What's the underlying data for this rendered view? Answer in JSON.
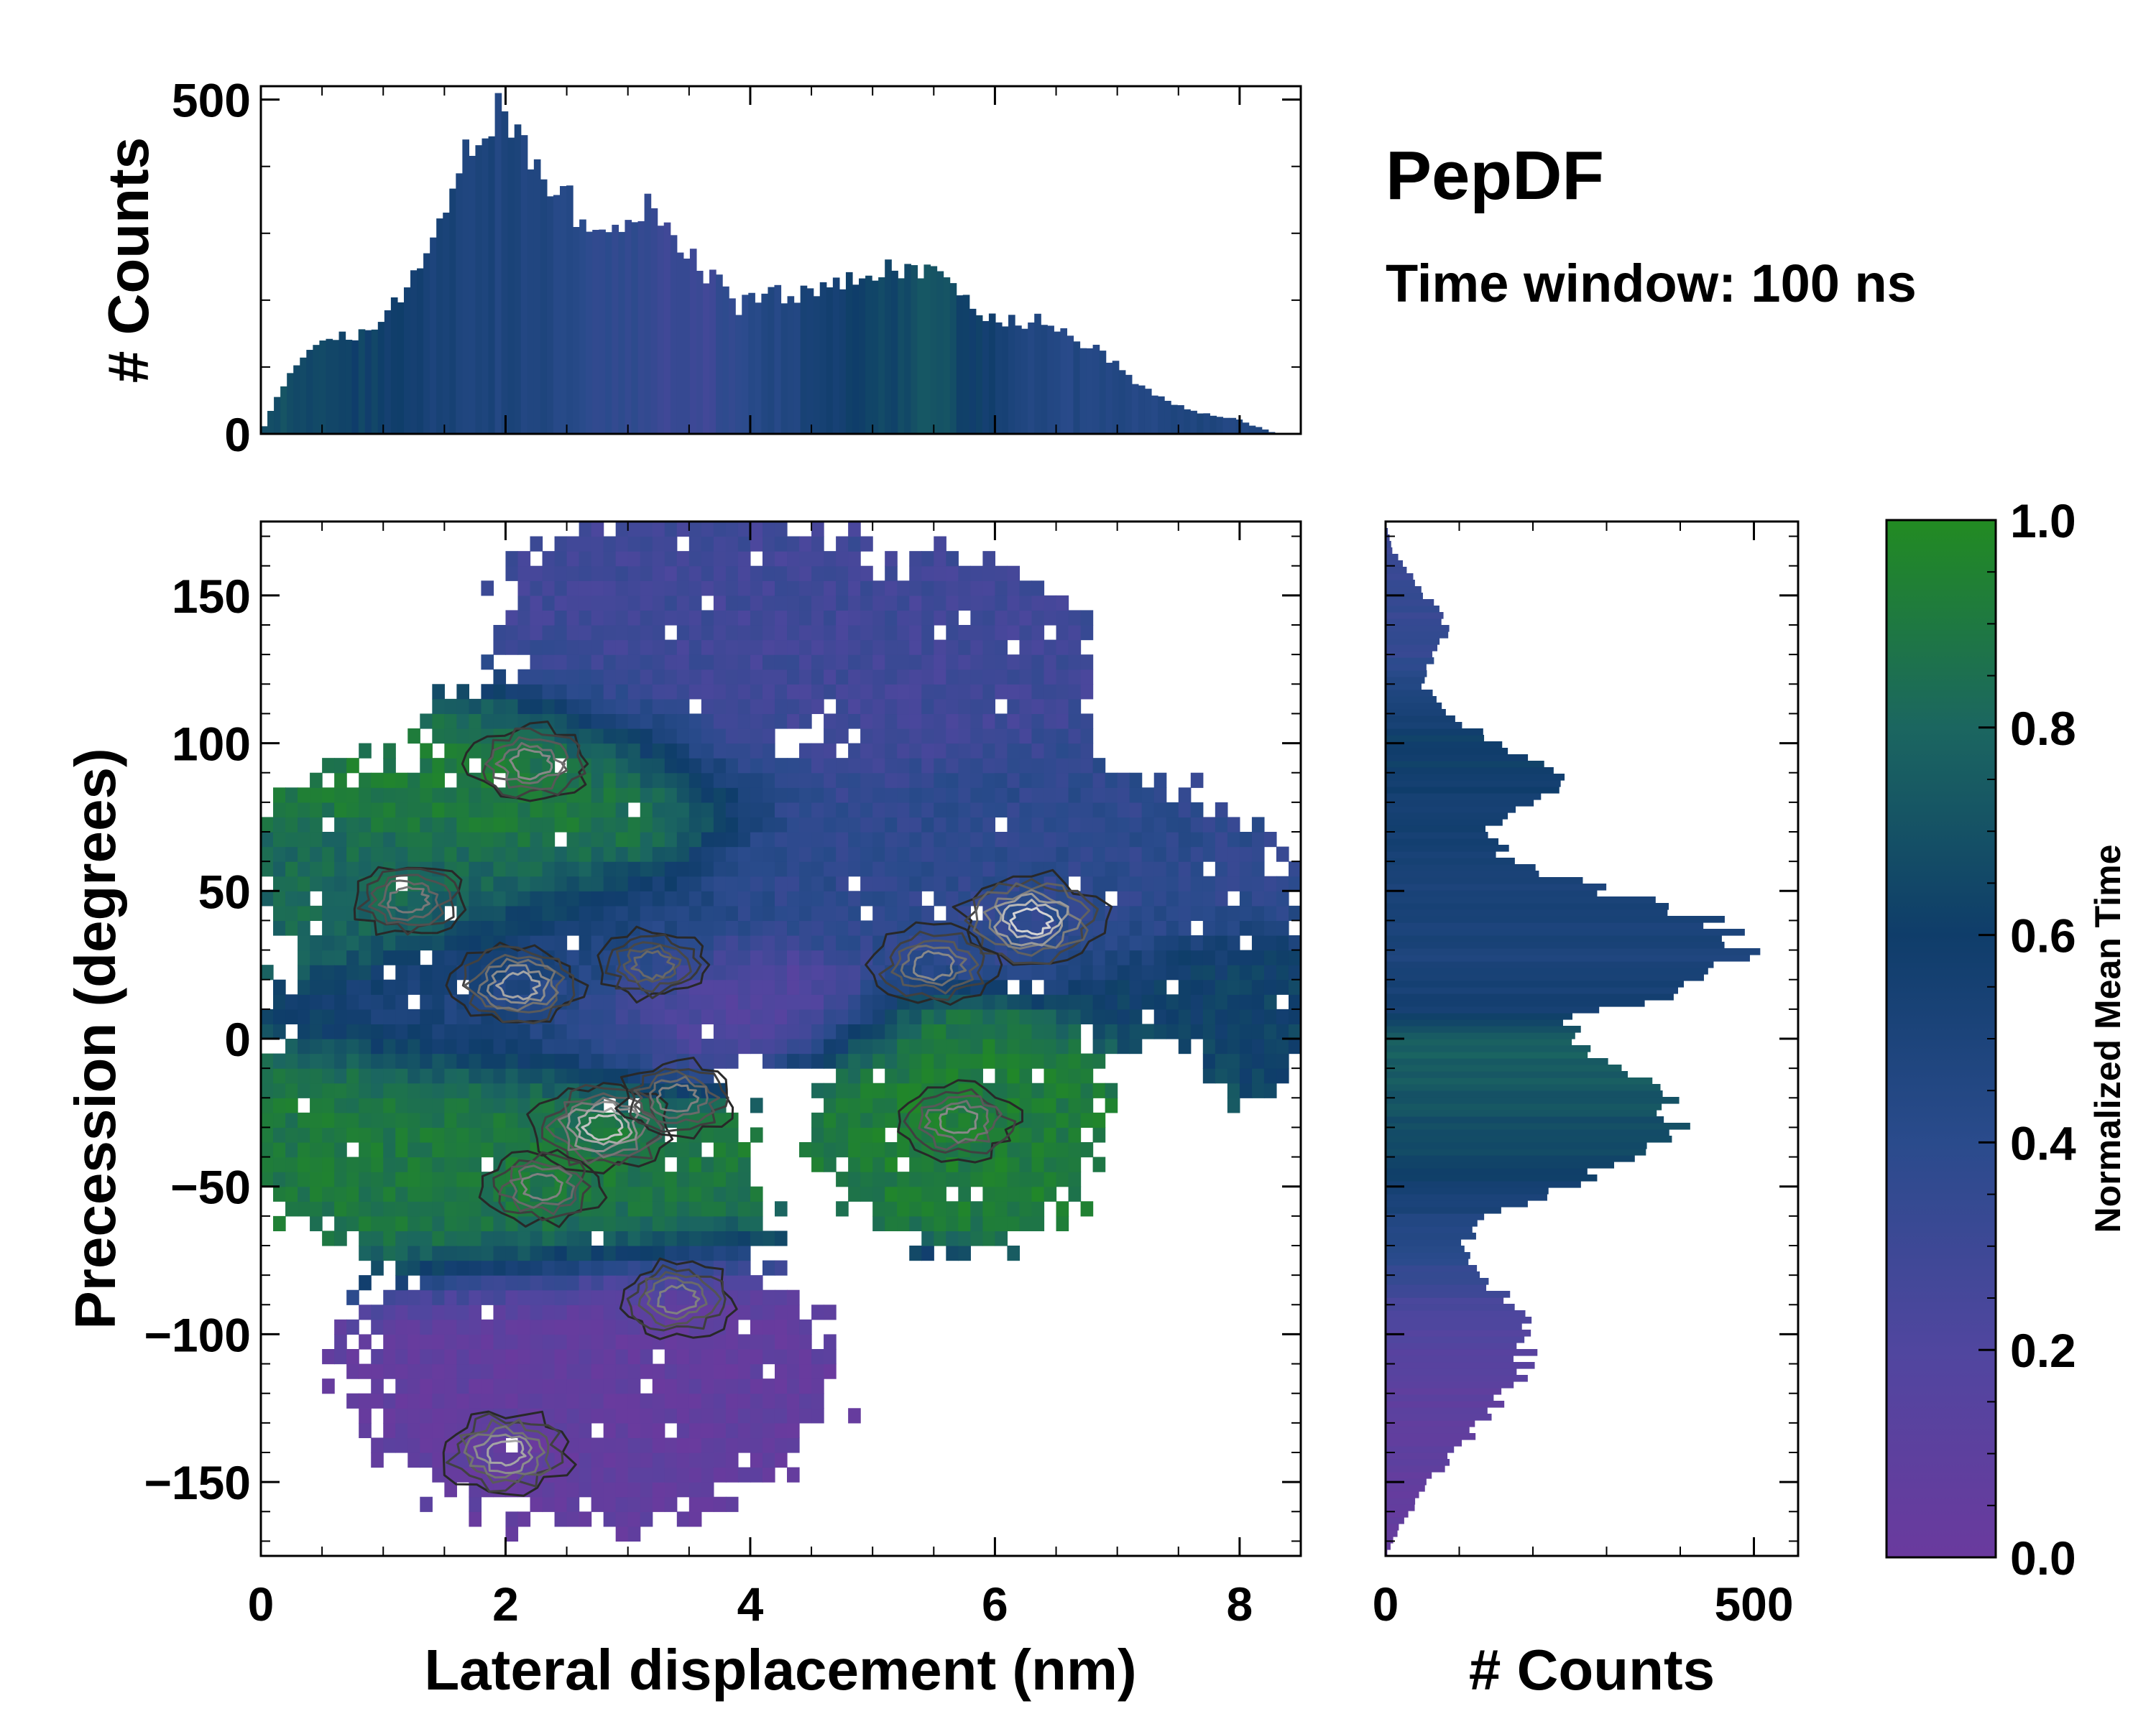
{
  "figure": {
    "title": "PepDF",
    "subtitle": "Time window: 100 ns"
  },
  "chart_data": [
    {
      "type": "heatmap",
      "name": "main-2d-density",
      "xlabel": "Lateral displacement (nm)",
      "ylabel": "Precession (degrees)",
      "xlim": [
        0,
        8.5
      ],
      "ylim": [
        -175,
        175
      ],
      "xticks": [
        0,
        2,
        4,
        6,
        8
      ],
      "yticks": [
        -150,
        -100,
        -50,
        0,
        50,
        100,
        150
      ],
      "ytick_labels": [
        "−150",
        "−100",
        "−50",
        "0",
        "50",
        "100",
        "150"
      ],
      "color_value": "Normalized Mean Time",
      "regions": [
        {
          "label": "upper-left green",
          "x": 1.8,
          "y": 93,
          "rx": 1.3,
          "ry": 22,
          "t": 0.92
        },
        {
          "label": "left green band",
          "x": 0.9,
          "y": 50,
          "rx": 1.2,
          "ry": 20,
          "t": 0.82
        },
        {
          "label": "center blue",
          "x": 2.3,
          "y": 15,
          "rx": 1.2,
          "ry": 25,
          "t": 0.48
        },
        {
          "label": "center purple",
          "x": 3.6,
          "y": 5,
          "rx": 1.0,
          "ry": 18,
          "t": 0.12
        },
        {
          "label": "right blue",
          "x": 6.6,
          "y": 55,
          "rx": 1.6,
          "ry": 25,
          "t": 0.38
        },
        {
          "label": "far right teal",
          "x": 7.8,
          "y": 15,
          "rx": 0.8,
          "ry": 18,
          "t": 0.62
        },
        {
          "label": "lower middle green",
          "x": 5.5,
          "y": -25,
          "rx": 1.2,
          "ry": 25,
          "t": 0.92
        },
        {
          "label": "lower left green",
          "x": 2.2,
          "y": -40,
          "rx": 1.8,
          "ry": 30,
          "t": 0.9
        },
        {
          "label": "bottom purple",
          "x": 3.0,
          "y": -120,
          "rx": 1.7,
          "ry": 35,
          "t": 0.06
        },
        {
          "label": "top purple-blue",
          "x": 3.8,
          "y": 130,
          "rx": 1.8,
          "ry": 30,
          "t": 0.28
        }
      ],
      "density_peaks": [
        {
          "x": 6.3,
          "y": 40,
          "intensity": 1.0
        },
        {
          "x": 2.8,
          "y": -30,
          "intensity": 0.9
        },
        {
          "x": 2.0,
          "y": -140,
          "intensity": 0.75
        },
        {
          "x": 2.1,
          "y": 18,
          "intensity": 0.75
        },
        {
          "x": 2.2,
          "y": 93,
          "intensity": 0.6
        },
        {
          "x": 5.5,
          "y": 25,
          "intensity": 0.6
        },
        {
          "x": 5.7,
          "y": -28,
          "intensity": 0.6
        },
        {
          "x": 2.3,
          "y": -50,
          "intensity": 0.55
        },
        {
          "x": 3.4,
          "y": -88,
          "intensity": 0.55
        },
        {
          "x": 3.4,
          "y": -20,
          "intensity": 0.55
        },
        {
          "x": 1.2,
          "y": 47,
          "intensity": 0.5
        },
        {
          "x": 3.2,
          "y": 25,
          "intensity": 0.4
        }
      ]
    },
    {
      "type": "bar",
      "name": "top-marginal-histogram",
      "ylabel": "# Counts",
      "xlim": [
        0,
        8.5
      ],
      "ylim": [
        0,
        520
      ],
      "yticks": [
        0,
        500
      ],
      "bins": 160,
      "profile_x": [
        0,
        0.15,
        0.4,
        0.8,
        1.0,
        1.3,
        1.6,
        1.8,
        1.95,
        2.1,
        2.3,
        2.6,
        2.9,
        3.2,
        3.5,
        3.9,
        4.3,
        4.6,
        5.0,
        5.5,
        5.8,
        6.1,
        6.4,
        6.8,
        7.2,
        7.6,
        8.0,
        8.3,
        8.5
      ],
      "profile_y": [
        0,
        60,
        130,
        150,
        165,
        250,
        390,
        470,
        480,
        440,
        390,
        330,
        320,
        350,
        270,
        190,
        210,
        220,
        240,
        250,
        190,
        165,
        175,
        130,
        70,
        35,
        20,
        0,
        0
      ],
      "color_profile_x": [
        0,
        1.0,
        1.6,
        2.2,
        3.0,
        3.6,
        4.2,
        5.0,
        5.5,
        5.9,
        6.4,
        7.2,
        8.5
      ],
      "color_profile_t": [
        0.72,
        0.6,
        0.5,
        0.47,
        0.35,
        0.3,
        0.45,
        0.62,
        0.72,
        0.58,
        0.45,
        0.45,
        0.5
      ]
    },
    {
      "type": "bar",
      "name": "right-marginal-histogram",
      "xlabel": "# Counts",
      "xlim": [
        0,
        560
      ],
      "xticks": [
        0,
        500
      ],
      "ylim": [
        -175,
        175
      ],
      "bins": 160,
      "profile_y": [
        -175,
        -165,
        -150,
        -130,
        -115,
        -100,
        -90,
        -80,
        -70,
        -60,
        -50,
        -40,
        -30,
        -20,
        -10,
        0,
        10,
        20,
        30,
        40,
        50,
        60,
        70,
        80,
        90,
        100,
        110,
        120,
        140,
        155,
        165,
        175
      ],
      "profile_c": [
        0,
        20,
        60,
        130,
        180,
        200,
        170,
        130,
        110,
        130,
        260,
        320,
        420,
        380,
        330,
        230,
        290,
        460,
        480,
        430,
        300,
        170,
        140,
        210,
        230,
        150,
        80,
        50,
        85,
        40,
        10,
        0
      ],
      "color_profile_y": [
        -175,
        -120,
        -95,
        -80,
        -60,
        -45,
        -20,
        0,
        10,
        30,
        50,
        70,
        100,
        130,
        175
      ],
      "color_profile_t": [
        0.05,
        0.1,
        0.2,
        0.35,
        0.48,
        0.62,
        0.72,
        0.78,
        0.55,
        0.5,
        0.52,
        0.55,
        0.62,
        0.35,
        0.3
      ]
    },
    {
      "type": "heatmap",
      "name": "colorbar",
      "label": "Normalized Mean Time",
      "range": [
        0.0,
        1.0
      ],
      "ticks": [
        0.0,
        0.2,
        0.4,
        0.6,
        0.8,
        1.0
      ],
      "tick_labels": [
        "0.0",
        "0.2",
        "0.4",
        "0.6",
        "0.8",
        "1.0"
      ],
      "colors": [
        "#6a3a9e",
        "#50469f",
        "#2a4b8c",
        "#0f3d6a",
        "#1b6660",
        "#228b22"
      ]
    }
  ]
}
